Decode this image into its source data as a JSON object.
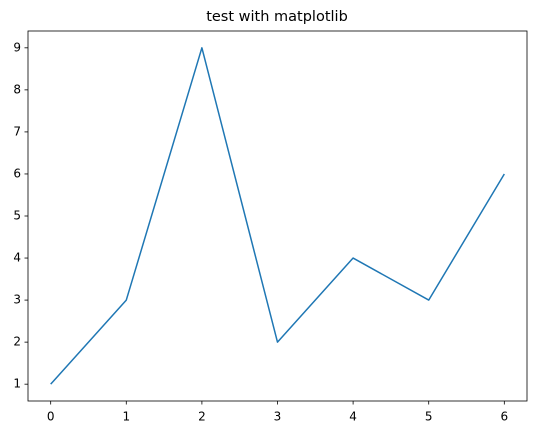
{
  "chart_data": {
    "type": "line",
    "title": "test with matplotlib",
    "x": [
      0,
      1,
      2,
      3,
      4,
      5,
      6
    ],
    "series": [
      {
        "color": "#1f77b4",
        "values": [
          1,
          3,
          9,
          2,
          4,
          3,
          6
        ]
      }
    ],
    "xlim": [
      -0.3,
      6.3
    ],
    "xticks": [
      0,
      1,
      2,
      3,
      4,
      5,
      6
    ],
    "ylim": [
      0.6,
      9.4
    ],
    "yticks": [
      1,
      2,
      3,
      4,
      5,
      6,
      7,
      8,
      9
    ],
    "grid": false
  }
}
